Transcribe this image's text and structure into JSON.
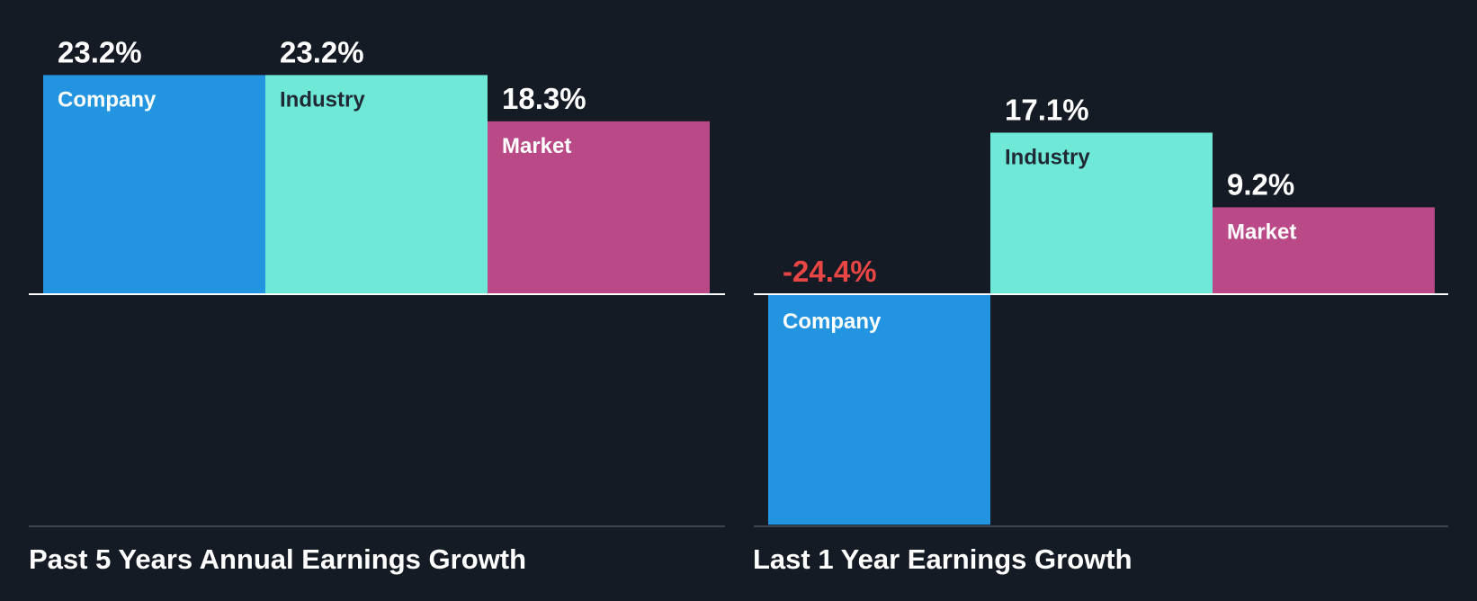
{
  "colors": {
    "background": "#151b24",
    "company": "#2394e0",
    "industry": "#6fe8d7",
    "market": "#b94a87",
    "negative_value": "#e84545",
    "positive_value": "#ffffff",
    "axis": "#ffffff",
    "baseline": "#4a5160"
  },
  "chart_data": [
    {
      "type": "bar",
      "title": "Past 5 Years Annual Earnings Growth",
      "categories": [
        "Company",
        "Industry",
        "Market"
      ],
      "values": [
        23.2,
        23.2,
        18.3
      ],
      "value_labels": [
        "23.2%",
        "23.2%",
        "18.3%"
      ],
      "unit": "%",
      "ylim": [
        -24.4,
        23.2
      ]
    },
    {
      "type": "bar",
      "title": "Last 1 Year Earnings Growth",
      "categories": [
        "Company",
        "Industry",
        "Market"
      ],
      "values": [
        -24.4,
        17.1,
        9.2
      ],
      "value_labels": [
        "-24.4%",
        "17.1%",
        "9.2%"
      ],
      "unit": "%",
      "ylim": [
        -24.4,
        23.2
      ]
    }
  ]
}
